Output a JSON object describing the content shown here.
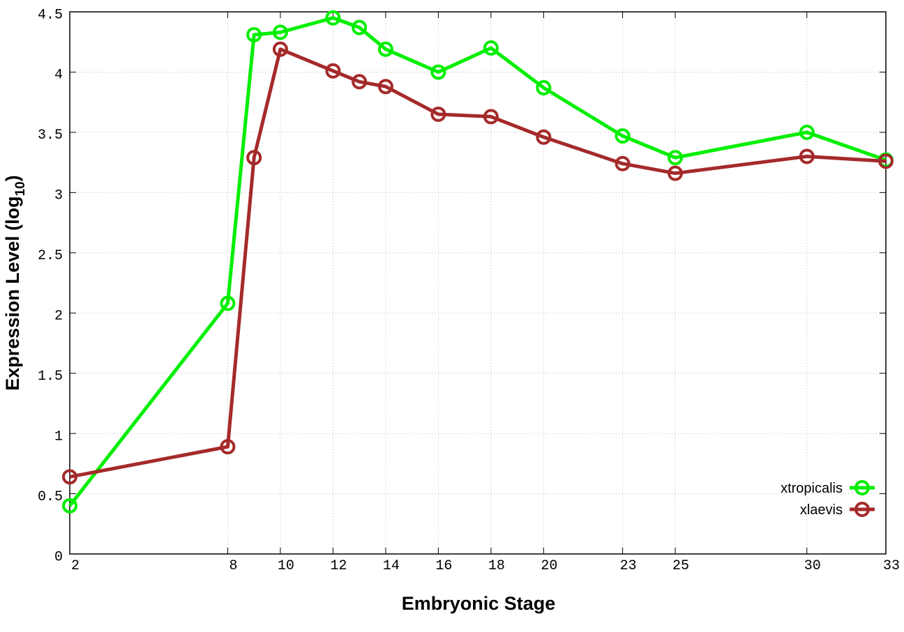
{
  "chart_data": {
    "type": "line",
    "xlabel": "Embryonic Stage",
    "ylabel": {
      "text": "Expression Level (log",
      "sub": "10",
      "end": ")"
    },
    "xlim": [
      2,
      33
    ],
    "xticks": [
      2,
      8,
      10,
      12,
      14,
      16,
      18,
      20,
      23,
      25,
      30,
      33
    ],
    "ylim": [
      0,
      4.5
    ],
    "yticks": [
      0,
      0.5,
      1,
      1.5,
      2,
      2.5,
      3,
      3.5,
      4,
      4.5
    ],
    "grid": true,
    "legend": "lower right",
    "x": [
      2,
      8,
      9,
      10,
      12,
      13,
      14,
      16,
      18,
      20,
      23,
      25,
      30,
      33
    ],
    "series": [
      {
        "name": "xtropicalis",
        "color": "#00ee00",
        "values": [
          0.4,
          2.08,
          4.31,
          4.33,
          4.45,
          4.37,
          4.19,
          4.0,
          4.2,
          3.87,
          3.47,
          3.29,
          3.5,
          3.27
        ]
      },
      {
        "name": "xlaevis",
        "color": "#a52a2a",
        "values": [
          0.64,
          0.89,
          3.29,
          4.19,
          4.01,
          3.92,
          3.88,
          3.65,
          3.63,
          3.46,
          3.24,
          3.16,
          3.3,
          3.26
        ]
      }
    ]
  }
}
